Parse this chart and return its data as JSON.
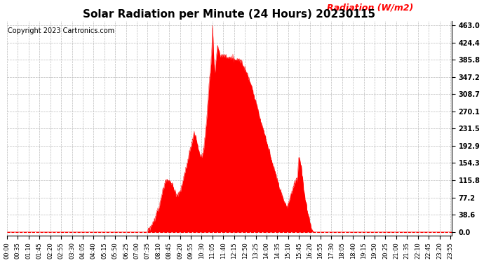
{
  "title": "Solar Radiation per Minute (24 Hours) 20230115",
  "copyright_text": "Copyright 2023 Cartronics.com",
  "ylabel": "Radiation (W/m2)",
  "ylabel_color": "#ff0000",
  "background_color": "#ffffff",
  "fill_color": "#ff0000",
  "line_color": "#ff0000",
  "zero_line_color": "#ff0000",
  "grid_color": "#bbbbbb",
  "ytick_values": [
    0.0,
    38.6,
    77.2,
    115.8,
    154.3,
    192.9,
    231.5,
    270.1,
    308.7,
    347.2,
    385.8,
    424.4,
    463.0
  ],
  "ymax": 463.0,
  "total_minutes": 1440,
  "x_tick_interval": 35,
  "x_tick_labels": [
    "00:00",
    "00:35",
    "01:10",
    "01:45",
    "02:20",
    "02:55",
    "03:30",
    "04:05",
    "04:40",
    "05:15",
    "05:50",
    "06:25",
    "07:00",
    "07:35",
    "08:10",
    "08:45",
    "09:20",
    "09:55",
    "10:30",
    "11:05",
    "11:40",
    "12:15",
    "12:50",
    "13:25",
    "14:00",
    "14:35",
    "15:10",
    "15:45",
    "16:20",
    "16:55",
    "17:30",
    "18:05",
    "18:40",
    "19:15",
    "19:50",
    "20:25",
    "21:00",
    "21:35",
    "22:10",
    "22:45",
    "23:20",
    "23:55"
  ],
  "title_fontsize": 11,
  "copyright_fontsize": 7,
  "ylabel_fontsize": 9,
  "figwidth": 6.9,
  "figheight": 3.75,
  "dpi": 100
}
